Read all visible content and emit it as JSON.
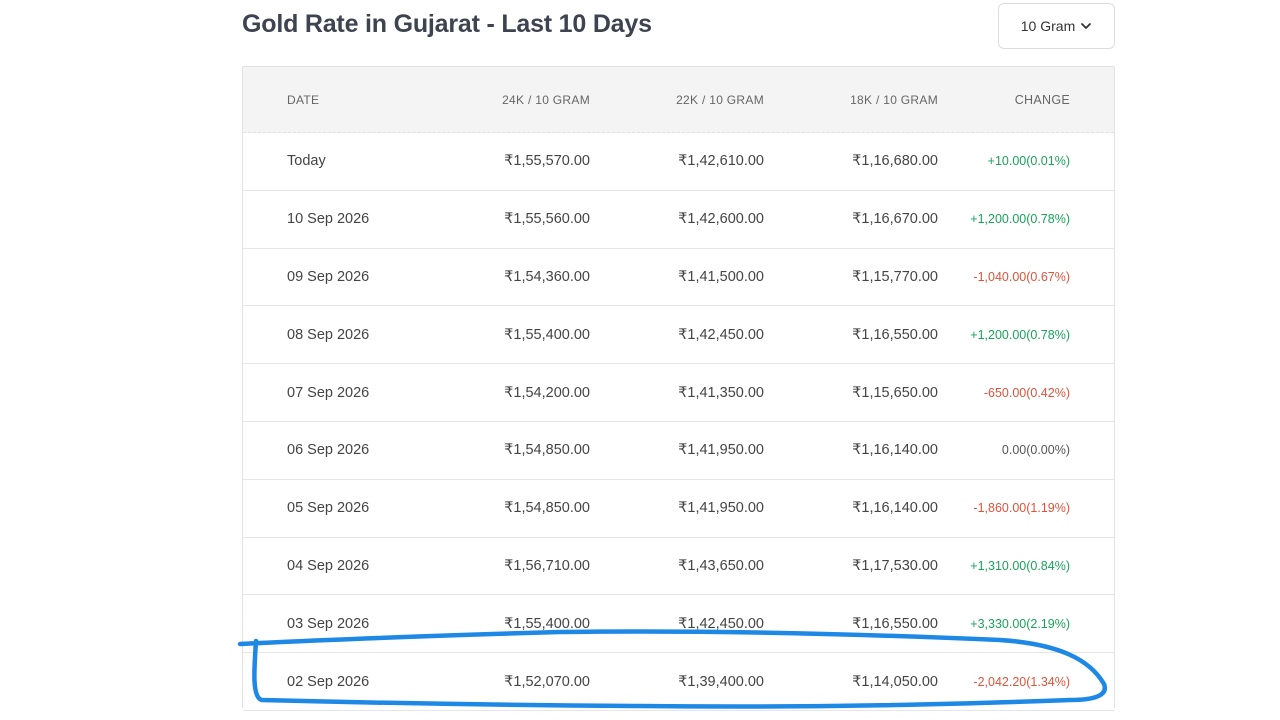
{
  "page": {
    "title": "Gold Rate in Gujarat - Last 10 Days"
  },
  "unit_selector": {
    "value": "10 Gram",
    "icon": "chevron-down-icon"
  },
  "table": {
    "headers": {
      "date": "DATE",
      "k24": "24K / 10 GRAM",
      "k22": "22K / 10 GRAM",
      "k18": "18K / 10 GRAM",
      "change": "CHANGE"
    },
    "rows": [
      {
        "date": "Today",
        "k24": "₹1,55,570.00",
        "k22": "₹1,42,610.00",
        "k18": "₹1,16,680.00",
        "change": "+10.00(0.01%)",
        "trend": "up"
      },
      {
        "date": "10 Sep 2026",
        "k24": "₹1,55,560.00",
        "k22": "₹1,42,600.00",
        "k18": "₹1,16,670.00",
        "change": "+1,200.00(0.78%)",
        "trend": "up"
      },
      {
        "date": "09 Sep 2026",
        "k24": "₹1,54,360.00",
        "k22": "₹1,41,500.00",
        "k18": "₹1,15,770.00",
        "change": "-1,040.00(0.67%)",
        "trend": "down"
      },
      {
        "date": "08 Sep 2026",
        "k24": "₹1,55,400.00",
        "k22": "₹1,42,450.00",
        "k18": "₹1,16,550.00",
        "change": "+1,200.00(0.78%)",
        "trend": "up"
      },
      {
        "date": "07 Sep 2026",
        "k24": "₹1,54,200.00",
        "k22": "₹1,41,350.00",
        "k18": "₹1,15,650.00",
        "change": "-650.00(0.42%)",
        "trend": "down"
      },
      {
        "date": "06 Sep 2026",
        "k24": "₹1,54,850.00",
        "k22": "₹1,41,950.00",
        "k18": "₹1,16,140.00",
        "change": "0.00(0.00%)",
        "trend": "flat"
      },
      {
        "date": "05 Sep 2026",
        "k24": "₹1,54,850.00",
        "k22": "₹1,41,950.00",
        "k18": "₹1,16,140.00",
        "change": "-1,860.00(1.19%)",
        "trend": "down"
      },
      {
        "date": "04 Sep 2026",
        "k24": "₹1,56,710.00",
        "k22": "₹1,43,650.00",
        "k18": "₹1,17,530.00",
        "change": "+1,310.00(0.84%)",
        "trend": "up"
      },
      {
        "date": "03 Sep 2026",
        "k24": "₹1,55,400.00",
        "k22": "₹1,42,450.00",
        "k18": "₹1,16,550.00",
        "change": "+3,330.00(2.19%)",
        "trend": "up"
      },
      {
        "date": "02 Sep 2026",
        "k24": "₹1,52,070.00",
        "k22": "₹1,39,400.00",
        "k18": "₹1,14,050.00",
        "change": "-2,042.20(1.34%)",
        "trend": "down"
      }
    ]
  },
  "colors": {
    "up": "#1aa35a",
    "down": "#e0533a",
    "flat": "#555555",
    "annotation": "#1e88e5"
  }
}
